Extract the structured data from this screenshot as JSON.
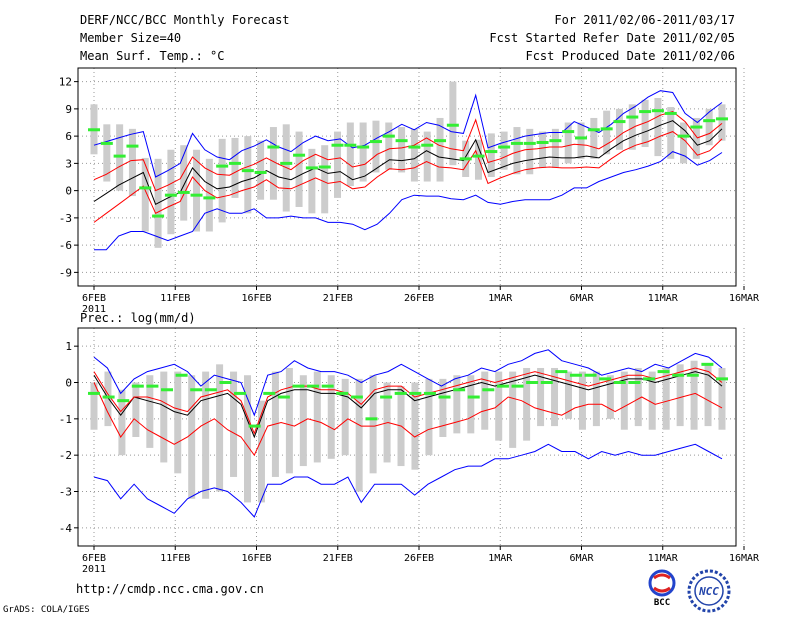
{
  "header": {
    "title": "DERF/NCC/BCC Monthly Forecast",
    "member": "Member Size=40",
    "variable": "Mean Surf. Temp.: °C",
    "period": "For 2011/02/06-2011/03/17",
    "started": "Fcst Started Refer Date 2011/02/05",
    "produced": "Fcst Produced Date 2011/02/06"
  },
  "footer": {
    "url": "http://cmdp.ncc.cma.gov.cn",
    "grads": "GrADS: COLA/IGES",
    "logo_left": "BCC",
    "logo_right": "NCC"
  },
  "colors": {
    "blue": "#0000ff",
    "red": "#ff0000",
    "black": "#000000",
    "green": "#33ee33",
    "box": "#cccccc",
    "grid": "#999999"
  },
  "chart_data": [
    {
      "type": "line",
      "title": "Mean Surf. Temp.: °C",
      "x_labels": [
        "6FEB",
        "11FEB",
        "16FEB",
        "21FEB",
        "26FEB",
        "1MAR",
        "6MAR",
        "11MAR",
        "16MAR"
      ],
      "x_label_year": "2011",
      "x_label_every": 5,
      "days": 40,
      "ylim": [
        -10.5,
        13.5
      ],
      "yticks": [
        -9,
        -6,
        -3,
        0,
        3,
        6,
        9,
        12
      ],
      "ytick_labels": [
        "-9",
        "-6",
        "-3",
        "0",
        "3",
        "6",
        "9",
        "12"
      ],
      "series": [
        {
          "name": "max",
          "color": "#0000ff",
          "values": [
            5.0,
            5.4,
            5.8,
            6.2,
            6.5,
            1.5,
            2.2,
            3.0,
            6.3,
            4.5,
            3.7,
            3.4,
            4.4,
            4.9,
            5.6,
            4.8,
            4.3,
            5.3,
            6.0,
            5.5,
            5.7,
            4.7,
            5.0,
            5.8,
            6.5,
            7.3,
            6.7,
            7.5,
            7.2,
            6.5,
            6.3,
            10.5,
            4.7,
            5.2,
            5.6,
            6.0,
            6.2,
            6.4,
            6.4,
            7.6,
            7.0,
            6.4,
            7.3,
            8.5,
            9.3,
            10.3,
            11.0,
            10.8,
            8.5,
            7.5,
            8.7,
            9.7
          ]
        },
        {
          "name": "mean_plus",
          "color": "#ff0000",
          "values": [
            1.2,
            1.8,
            2.6,
            3.3,
            3.4,
            0.0,
            0.6,
            1.3,
            3.7,
            2.5,
            1.8,
            1.7,
            2.4,
            2.9,
            3.6,
            2.9,
            2.3,
            3.3,
            4.0,
            3.4,
            3.6,
            2.6,
            2.9,
            4.0,
            4.6,
            4.7,
            5.0,
            5.8,
            5.0,
            4.6,
            4.4,
            7.8,
            3.1,
            3.5,
            4.1,
            4.5,
            4.6,
            4.8,
            4.8,
            5.1,
            5.0,
            4.6,
            5.4,
            6.4,
            7.1,
            7.6,
            8.3,
            8.7,
            7.6,
            5.8,
            6.3,
            7.4
          ]
        },
        {
          "name": "mean",
          "color": "#000000",
          "values": [
            -1.2,
            -0.3,
            0.6,
            1.3,
            2.0,
            -1.5,
            -0.8,
            -0.2,
            2.5,
            1.0,
            0.2,
            0.4,
            1.0,
            1.4,
            2.2,
            1.5,
            1.2,
            1.9,
            2.5,
            1.9,
            2.1,
            1.2,
            1.6,
            2.5,
            3.4,
            3.3,
            3.5,
            4.4,
            3.7,
            3.5,
            3.3,
            5.6,
            2.0,
            2.5,
            3.0,
            3.3,
            3.5,
            3.7,
            3.6,
            3.6,
            3.8,
            3.6,
            4.6,
            5.5,
            6.1,
            6.6,
            7.2,
            7.7,
            6.6,
            5.0,
            5.5,
            6.8
          ]
        },
        {
          "name": "mean_minus",
          "color": "#ff0000",
          "values": [
            -3.5,
            -2.5,
            -1.5,
            -0.5,
            0.5,
            -2.5,
            -1.8,
            -1.2,
            1.5,
            0.0,
            -0.8,
            -0.5,
            0.0,
            0.4,
            1.2,
            0.3,
            0.2,
            0.8,
            1.4,
            0.8,
            1.0,
            0.2,
            0.4,
            1.5,
            2.4,
            2.3,
            2.5,
            3.2,
            2.6,
            2.5,
            2.3,
            4.4,
            0.8,
            1.4,
            1.9,
            2.3,
            2.5,
            2.6,
            2.5,
            2.5,
            2.6,
            2.5,
            3.5,
            4.4,
            5.0,
            5.4,
            6.0,
            6.5,
            5.5,
            3.9,
            4.4,
            5.7
          ]
        },
        {
          "name": "min",
          "color": "#0000ff",
          "values": [
            -6.5,
            -6.5,
            -5.0,
            -4.5,
            -4.5,
            -5.0,
            -5.5,
            -5.0,
            -4.5,
            -2.5,
            -2.0,
            -2.5,
            -2.5,
            -2.0,
            -3.0,
            -3.0,
            -2.8,
            -3.0,
            -3.0,
            -3.5,
            -3.5,
            -3.7,
            -4.3,
            -3.7,
            -2.5,
            -1.0,
            -0.5,
            -0.6,
            -0.6,
            -0.9,
            -1.0,
            -0.5,
            -1.3,
            -1.5,
            -1.2,
            -1.0,
            -1.0,
            -1.0,
            -0.5,
            0.3,
            0.3,
            1.0,
            1.5,
            2.0,
            2.3,
            2.7,
            3.2,
            4.3,
            3.8,
            2.8,
            3.3,
            4.2
          ]
        },
        {
          "name": "observed",
          "color": "#33ee33",
          "values": [
            6.7,
            5.2,
            3.8,
            4.9,
            0.3,
            -2.8,
            -0.5,
            -0.2,
            -0.5,
            -0.8,
            2.7,
            3.0,
            2.2,
            2.0,
            4.8,
            3.0,
            3.9,
            2.5,
            2.6,
            5.0,
            5.0,
            4.8,
            5.4,
            6.0,
            5.5,
            4.8,
            5.0,
            5.5,
            7.2,
            3.5,
            3.8,
            4.3,
            4.8,
            5.2,
            5.2,
            5.3,
            5.5,
            6.5,
            5.8,
            6.7,
            6.8,
            7.6,
            8.1,
            8.7,
            8.8,
            8.5,
            6.0,
            7.0,
            7.7,
            7.9
          ]
        },
        {
          "name": "box_top",
          "color": "#cccccc",
          "values": [
            9.5,
            7.3,
            7.3,
            6.8,
            3.6,
            3.5,
            4.5,
            5.0,
            4.5,
            3.5,
            5.7,
            5.8,
            6.0,
            5.5,
            7.0,
            7.3,
            6.5,
            4.6,
            5.0,
            6.5,
            7.5,
            7.5,
            7.7,
            7.5,
            7.0,
            6.8,
            6.5,
            8.0,
            12.0,
            5.5,
            5.6,
            6.3,
            6.5,
            7.0,
            6.8,
            6.5,
            6.8,
            7.5,
            7.5,
            8.0,
            8.8,
            9.0,
            9.5,
            10.0,
            10.2,
            9.2,
            7.5,
            8.0,
            9.0,
            9.5
          ]
        },
        {
          "name": "box_bottom",
          "color": "#cccccc",
          "values": [
            4.0,
            1.0,
            0.0,
            -0.6,
            -4.5,
            -6.3,
            -4.8,
            -3.3,
            -4.5,
            -4.5,
            -3.5,
            -0.8,
            -2.5,
            -1.0,
            -1.0,
            -2.3,
            -1.8,
            -2.5,
            -2.5,
            -0.8,
            0.5,
            1.0,
            2.0,
            2.3,
            2.0,
            1.0,
            1.0,
            1.0,
            2.8,
            1.5,
            1.2,
            1.5,
            2.3,
            1.8,
            1.8,
            2.5,
            2.5,
            3.0,
            3.5,
            3.5,
            4.0,
            4.5,
            4.5,
            4.8,
            3.8,
            3.5,
            3.0,
            3.5,
            5.0,
            5.5
          ]
        }
      ]
    },
    {
      "type": "line",
      "title": "Prec.: log(mm/d)",
      "x_labels": [
        "6FEB",
        "11FEB",
        "16FEB",
        "21FEB",
        "26FEB",
        "1MAR",
        "6MAR",
        "11MAR",
        "16MAR"
      ],
      "x_label_year": "2011",
      "x_label_every": 5,
      "days": 40,
      "ylim": [
        -4.5,
        1.5
      ],
      "yticks": [
        -4,
        -3,
        -2,
        -1,
        0,
        1
      ],
      "ytick_labels": [
        "-4",
        "-3",
        "-2",
        "-1",
        "0",
        "1"
      ],
      "series": [
        {
          "name": "max",
          "color": "#0000ff",
          "values": [
            0.7,
            0.4,
            -0.3,
            0.1,
            0.3,
            0.4,
            0.5,
            0.3,
            -0.1,
            0.2,
            0.1,
            0.0,
            -0.9,
            0.2,
            0.3,
            0.6,
            0.4,
            0.3,
            0.3,
            0.2,
            0.0,
            0.2,
            0.3,
            0.5,
            0.3,
            0.1,
            -0.1,
            0.1,
            0.2,
            0.4,
            0.3,
            0.5,
            0.6,
            0.8,
            0.9,
            0.6,
            0.5,
            0.4,
            0.2,
            0.3,
            0.4,
            0.3,
            0.5,
            0.4,
            0.6,
            0.8,
            0.7,
            0.4
          ]
        },
        {
          "name": "mean",
          "color": "#000000",
          "values": [
            0.2,
            -0.4,
            -0.9,
            -0.4,
            -0.5,
            -0.6,
            -0.8,
            -0.9,
            -0.5,
            -0.4,
            -0.3,
            -0.6,
            -1.5,
            -0.5,
            -0.3,
            -0.2,
            -0.2,
            -0.3,
            -0.3,
            -0.4,
            -0.7,
            -0.3,
            -0.2,
            -0.2,
            -0.5,
            -0.4,
            -0.3,
            -0.2,
            -0.1,
            0.0,
            -0.1,
            0.0,
            0.1,
            0.2,
            0.1,
            0.0,
            -0.1,
            -0.2,
            -0.1,
            0.0,
            0.1,
            0.1,
            0.0,
            0.1,
            0.2,
            0.3,
            0.2,
            -0.1
          ]
        },
        {
          "name": "mean_plus",
          "color": "#ff0000",
          "values": [
            0.3,
            -0.3,
            -0.8,
            -0.4,
            -0.4,
            -0.5,
            -0.7,
            -0.8,
            -0.4,
            -0.3,
            -0.2,
            -0.5,
            -1.4,
            -0.4,
            -0.2,
            -0.1,
            -0.1,
            -0.2,
            -0.2,
            -0.3,
            -0.6,
            -0.2,
            -0.1,
            -0.1,
            -0.4,
            -0.3,
            -0.2,
            -0.1,
            0.0,
            0.1,
            0.0,
            0.1,
            0.2,
            0.3,
            0.2,
            0.1,
            0.0,
            -0.1,
            0.0,
            0.1,
            0.2,
            0.2,
            0.1,
            0.2,
            0.3,
            0.4,
            0.3,
            0.0
          ]
        },
        {
          "name": "mean_minus",
          "color": "#ff0000",
          "values": [
            0.0,
            -0.8,
            -1.5,
            -1.0,
            -1.3,
            -1.5,
            -1.7,
            -1.5,
            -1.2,
            -1.0,
            -1.3,
            -1.5,
            -2.0,
            -1.2,
            -1.1,
            -1.2,
            -1.0,
            -1.1,
            -1.3,
            -1.0,
            -1.2,
            -1.2,
            -1.1,
            -1.2,
            -1.5,
            -1.3,
            -1.2,
            -1.1,
            -1.0,
            -0.8,
            -0.7,
            -0.4,
            -0.5,
            -0.7,
            -0.8,
            -0.9,
            -0.7,
            -0.6,
            -0.6,
            -0.8,
            -0.6,
            -0.4,
            -0.6,
            -0.5,
            -0.4,
            -0.3,
            -0.5,
            -0.7
          ]
        },
        {
          "name": "min",
          "color": "#0000ff",
          "values": [
            -2.6,
            -2.7,
            -3.2,
            -2.8,
            -3.2,
            -3.4,
            -3.6,
            -3.2,
            -3.0,
            -2.9,
            -3.0,
            -3.3,
            -3.7,
            -2.8,
            -2.8,
            -2.6,
            -2.6,
            -2.8,
            -2.8,
            -2.6,
            -3.3,
            -2.8,
            -2.8,
            -2.8,
            -3.1,
            -2.8,
            -2.6,
            -2.4,
            -2.3,
            -2.3,
            -2.1,
            -2.1,
            -2.0,
            -1.9,
            -1.7,
            -1.9,
            -1.9,
            -2.1,
            -1.9,
            -2.0,
            -1.9,
            -2.0,
            -2.0,
            -1.9,
            -1.8,
            -1.7,
            -1.9,
            -2.1
          ]
        },
        {
          "name": "observed",
          "color": "#33ee33",
          "values": [
            -0.3,
            -0.4,
            -0.5,
            -0.1,
            -0.1,
            -0.2,
            0.2,
            -0.2,
            -0.2,
            0.0,
            -0.3,
            -1.2,
            -0.3,
            -0.4,
            -0.1,
            -0.1,
            -0.1,
            -0.3,
            -0.4,
            -1.0,
            -0.4,
            -0.3,
            -0.3,
            -0.3,
            -0.4,
            -0.2,
            -0.4,
            -0.2,
            -0.1,
            -0.1,
            0.0,
            0.0,
            0.3,
            0.2,
            0.2,
            0.1,
            0.0,
            0.0,
            0.1,
            0.3,
            0.2,
            0.2,
            0.5,
            0.1
          ]
        },
        {
          "name": "box_top",
          "color": "#cccccc",
          "values": [
            0.0,
            0.3,
            -0.2,
            0.0,
            0.2,
            0.3,
            0.3,
            0.2,
            0.3,
            0.5,
            0.3,
            0.2,
            -0.5,
            0.3,
            0.4,
            0.2,
            0.3,
            0.2,
            0.1,
            0.1,
            0.2,
            0.0,
            -0.1,
            0.0,
            0.1,
            0.1,
            0.2,
            0.2,
            0.3,
            0.3,
            0.3,
            0.4,
            0.4,
            0.4,
            0.3,
            0.3,
            0.3,
            0.2,
            0.3,
            0.4,
            0.3,
            0.4,
            0.5,
            0.6,
            0.5,
            0.4
          ]
        },
        {
          "name": "box_bottom",
          "color": "#cccccc",
          "values": [
            -1.3,
            -1.2,
            -2.0,
            -1.5,
            -1.8,
            -2.2,
            -2.5,
            -3.2,
            -3.2,
            -3.0,
            -2.6,
            -3.3,
            -3.3,
            -2.6,
            -2.5,
            -2.3,
            -2.2,
            -2.1,
            -2.0,
            -3.0,
            -2.5,
            -2.2,
            -2.3,
            -2.4,
            -2.0,
            -1.5,
            -1.4,
            -1.4,
            -1.3,
            -1.6,
            -1.8,
            -1.6,
            -1.2,
            -1.2,
            -1.0,
            -1.3,
            -1.2,
            -1.0,
            -1.3,
            -1.2,
            -1.3,
            -1.3,
            -1.2,
            -1.3,
            -1.2,
            -1.3
          ]
        }
      ]
    }
  ]
}
